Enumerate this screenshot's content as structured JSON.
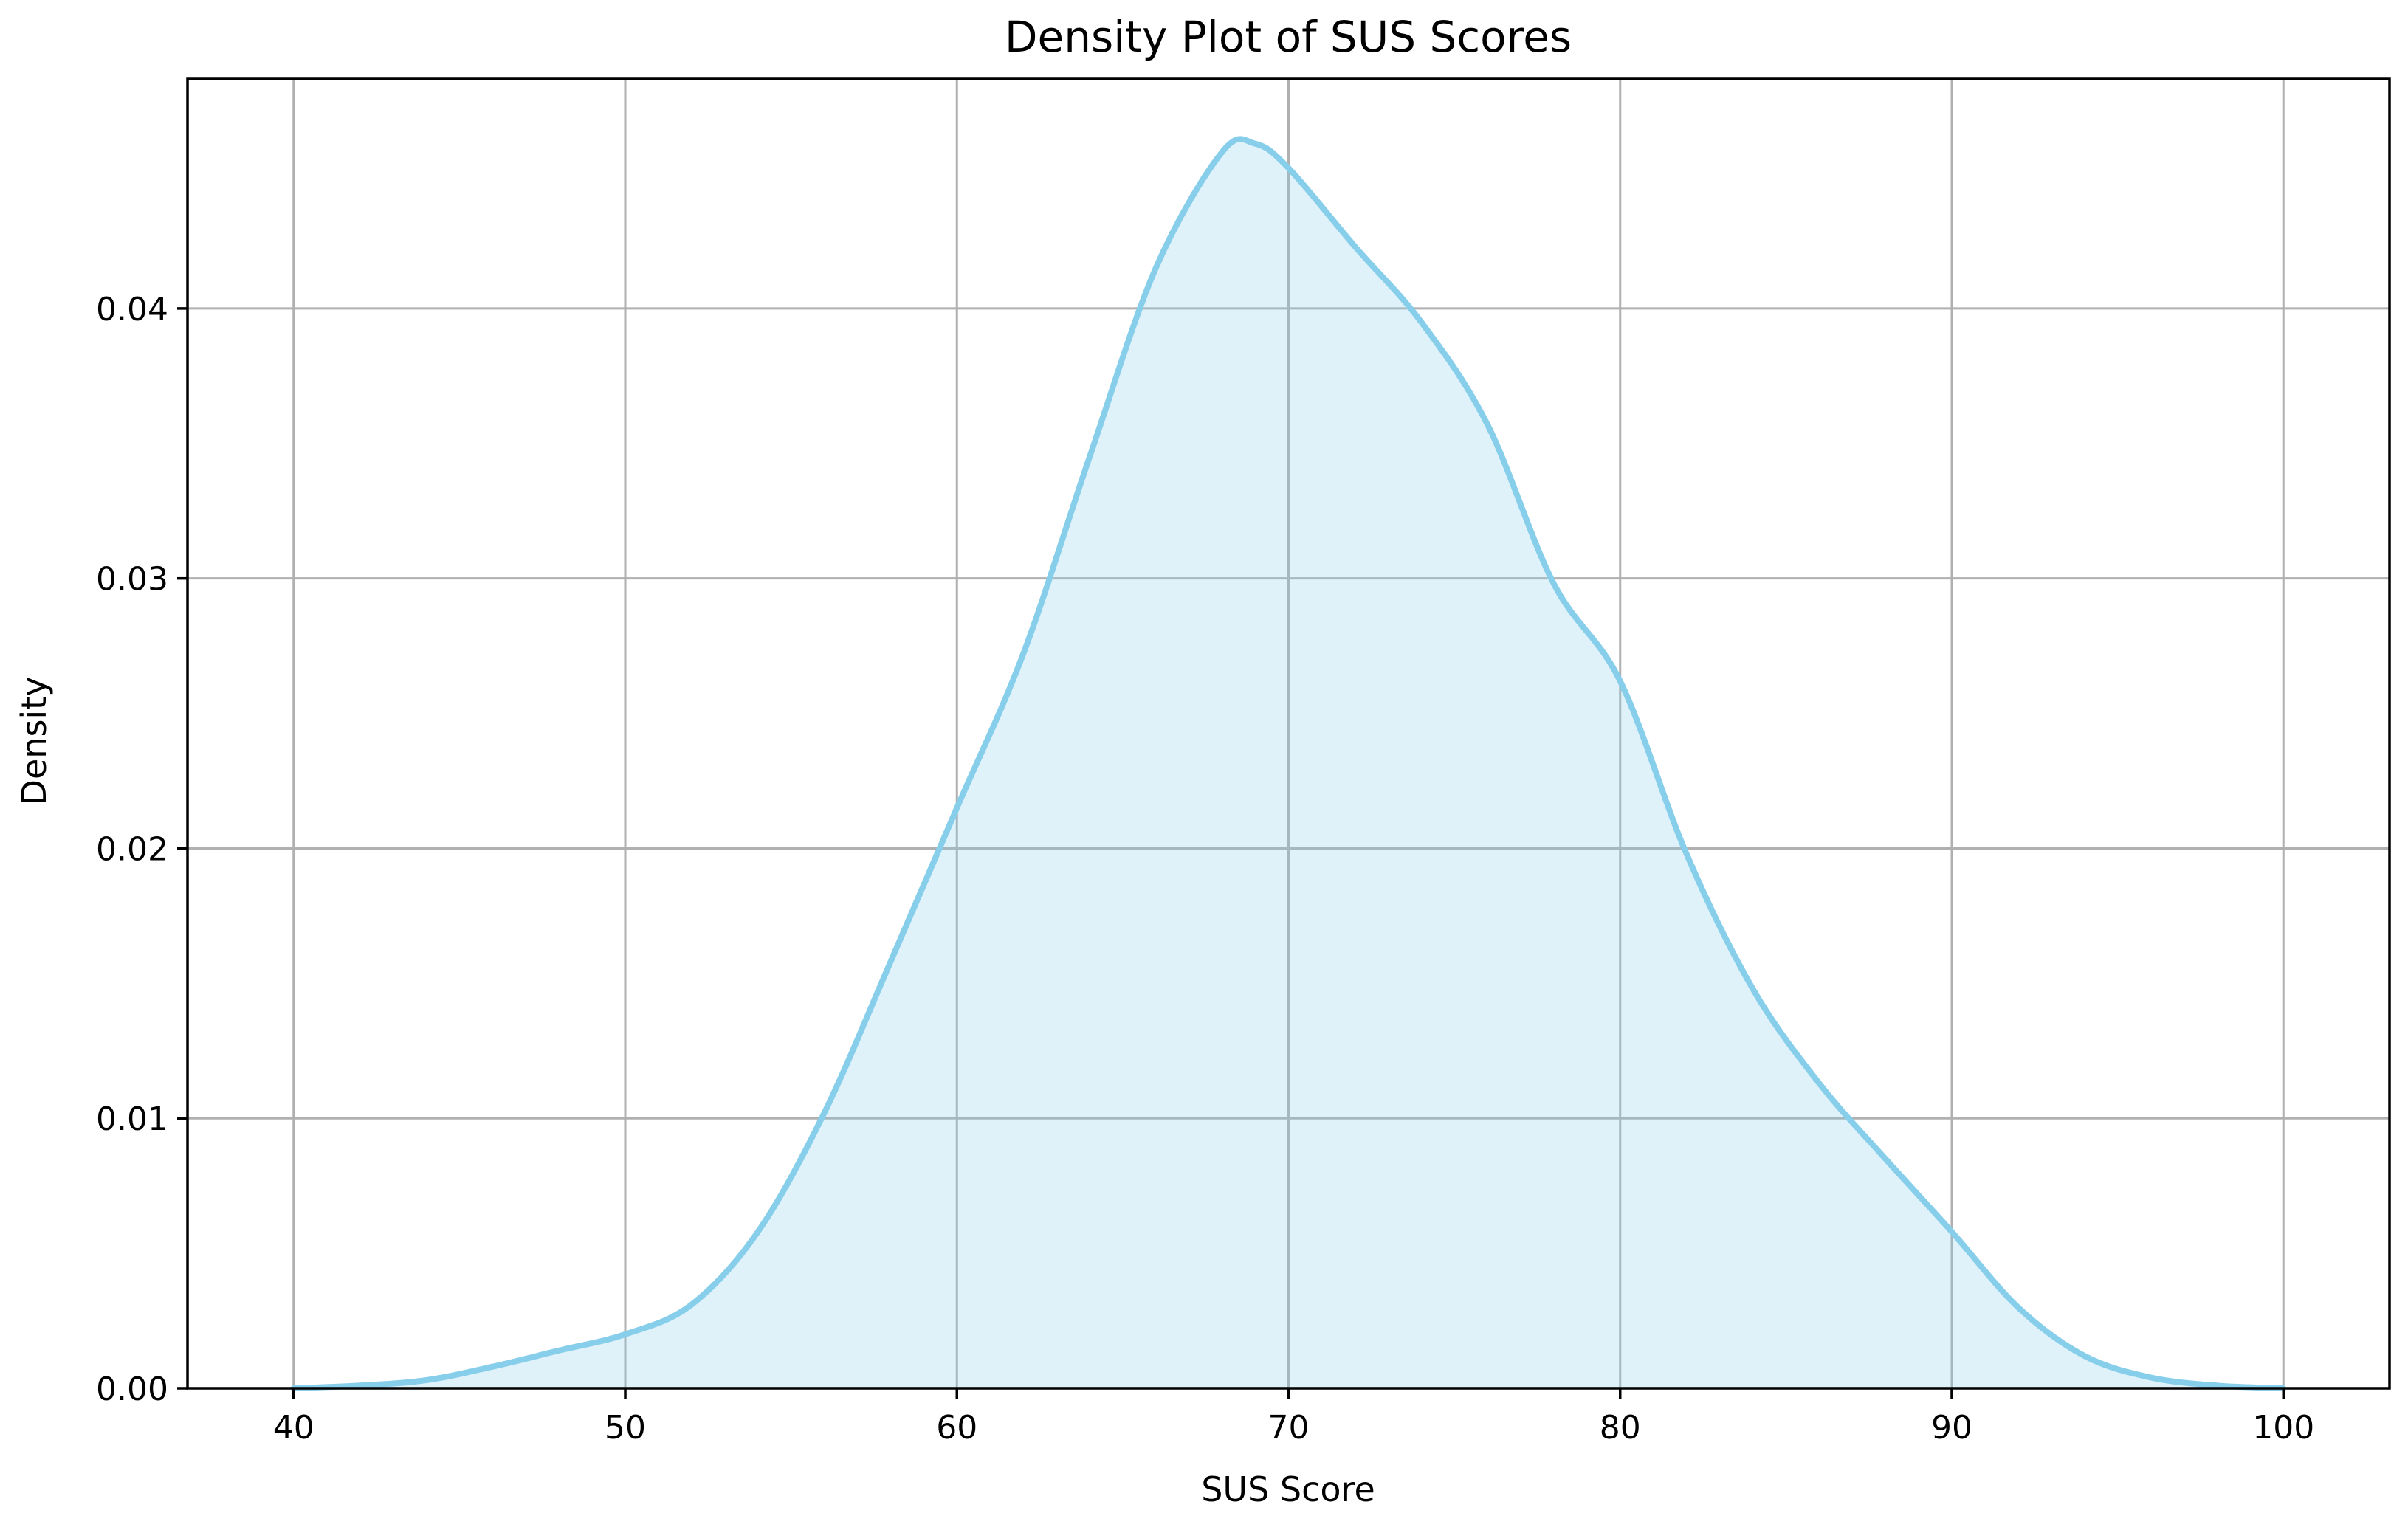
{
  "chart_data": {
    "type": "area",
    "title": "Density Plot of SUS Scores",
    "xlabel": "SUS Score",
    "ylabel": "Density",
    "xlim": [
      36.8,
      103.2
    ],
    "ylim": [
      0,
      0.0485
    ],
    "x_ticks": [
      40,
      50,
      60,
      70,
      80,
      90,
      100
    ],
    "x_tick_labels": [
      "40",
      "50",
      "60",
      "70",
      "80",
      "90",
      "100"
    ],
    "y_ticks": [
      0.0,
      0.01,
      0.02,
      0.03,
      0.04
    ],
    "y_tick_labels": [
      "0.00",
      "0.01",
      "0.02",
      "0.03",
      "0.04"
    ],
    "grid": true,
    "line_color": "#87ceeb",
    "fill_color": "#87ceeb",
    "fill_opacity": 0.27,
    "series": [
      {
        "x": [
          40,
          42,
          44,
          46,
          48,
          50,
          52,
          54,
          56,
          58,
          60,
          62,
          64,
          66,
          68,
          69,
          70,
          72,
          74,
          76,
          78,
          80,
          82,
          84,
          86,
          88,
          90,
          92,
          94,
          96,
          98,
          100
        ],
        "y": [
          0.0,
          0.0001,
          0.0003,
          0.0008,
          0.0014,
          0.002,
          0.0031,
          0.0058,
          0.0102,
          0.0158,
          0.0215,
          0.0272,
          0.0345,
          0.0415,
          0.0458,
          0.0461,
          0.0452,
          0.0423,
          0.0395,
          0.0357,
          0.0298,
          0.0262,
          0.0198,
          0.0148,
          0.0113,
          0.0085,
          0.0058,
          0.003,
          0.0012,
          0.0004,
          0.0001,
          0.0
        ]
      }
    ]
  }
}
